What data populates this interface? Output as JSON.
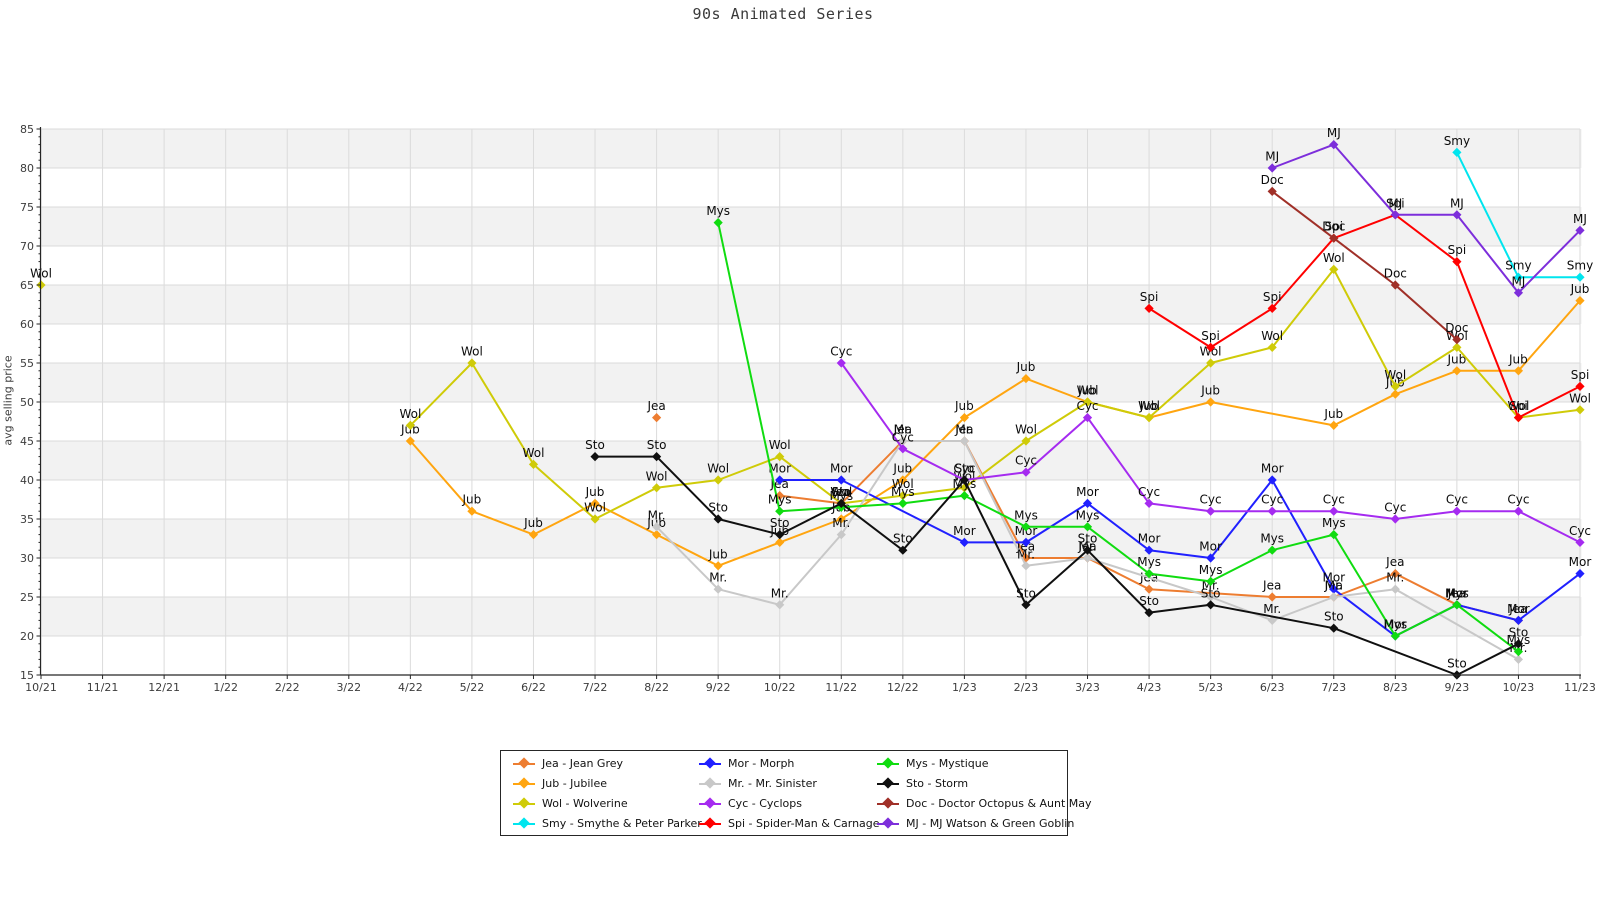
{
  "title": "90s Animated Series",
  "y_axis_label": "avg selling price",
  "legend_separator": " - ",
  "chart_data": {
    "type": "line",
    "title": "90s Animated Series",
    "xlabel": "",
    "ylabel": "avg selling price",
    "ylim": [
      15,
      85
    ],
    "ytick_step": 5,
    "grid": true,
    "band_rows": [
      [
        20,
        25
      ],
      [
        30,
        35
      ],
      [
        40,
        45
      ],
      [
        50,
        55
      ],
      [
        60,
        65
      ],
      [
        70,
        75
      ],
      [
        80,
        85
      ]
    ],
    "legend_position": "bottom-center",
    "marker": "diamond",
    "x": [
      "10/21",
      "11/21",
      "12/21",
      "1/22",
      "2/22",
      "3/22",
      "4/22",
      "5/22",
      "6/22",
      "7/22",
      "8/22",
      "9/22",
      "10/22",
      "11/22",
      "12/22",
      "1/23",
      "2/23",
      "3/23",
      "4/23",
      "5/23",
      "6/23",
      "7/23",
      "8/23",
      "9/23",
      "10/23",
      "11/23"
    ],
    "series": [
      {
        "key": "Jea",
        "name": "Jean Grey",
        "color": "#ED7D31",
        "breaks": [
          10
        ],
        "values": [
          null,
          null,
          null,
          null,
          null,
          null,
          null,
          null,
          null,
          null,
          48,
          null,
          38,
          37,
          45,
          45,
          30,
          30,
          26,
          null,
          25,
          25,
          28,
          24,
          22,
          null
        ]
      },
      {
        "key": "Jub",
        "name": "Jubilee",
        "color": "#FFA510",
        "breaks": [],
        "values": [
          null,
          null,
          null,
          null,
          null,
          null,
          45,
          36,
          33,
          37,
          33,
          29,
          32,
          35,
          40,
          48,
          53,
          50,
          48,
          50,
          null,
          47,
          51,
          54,
          54,
          63
        ]
      },
      {
        "key": "Wol",
        "name": "Wolverine",
        "color": "#CFCB08",
        "breaks": [
          0
        ],
        "values": [
          65,
          null,
          null,
          null,
          null,
          null,
          47,
          55,
          42,
          35,
          39,
          40,
          43,
          37,
          38,
          39,
          45,
          50,
          48,
          55,
          57,
          67,
          52,
          57,
          48,
          49
        ]
      },
      {
        "key": "Smy",
        "name": "Smythe & Peter Parker",
        "color": "#00E5EE",
        "breaks": [],
        "values": [
          null,
          null,
          null,
          null,
          null,
          null,
          null,
          null,
          null,
          null,
          null,
          null,
          null,
          null,
          null,
          null,
          null,
          null,
          null,
          null,
          null,
          null,
          null,
          82,
          66,
          66
        ]
      },
      {
        "key": "Mor",
        "name": "Morph",
        "color": "#2020FF",
        "breaks": [],
        "values": [
          null,
          null,
          null,
          null,
          null,
          null,
          null,
          null,
          null,
          null,
          null,
          null,
          40,
          40,
          null,
          32,
          32,
          37,
          31,
          30,
          40,
          26,
          20,
          24,
          22,
          28
        ]
      },
      {
        "key": "Mr.",
        "name": "Mr. Sinister",
        "color": "#C8C8C8",
        "breaks": [],
        "values": [
          null,
          null,
          null,
          null,
          null,
          null,
          null,
          null,
          null,
          null,
          34,
          26,
          24,
          33,
          45,
          45,
          29,
          30,
          null,
          25,
          22,
          25,
          26,
          null,
          17,
          null
        ]
      },
      {
        "key": "Cyc",
        "name": "Cyclops",
        "color": "#A52BF0",
        "breaks": [],
        "values": [
          null,
          null,
          null,
          null,
          null,
          null,
          null,
          null,
          null,
          null,
          null,
          null,
          null,
          55,
          44,
          40,
          41,
          48,
          37,
          36,
          36,
          36,
          35,
          36,
          36,
          32
        ]
      },
      {
        "key": "Spi",
        "name": "Spider-Man & Carnage",
        "color": "#FF0000",
        "breaks": [],
        "values": [
          null,
          null,
          null,
          null,
          null,
          null,
          null,
          null,
          null,
          null,
          null,
          null,
          null,
          null,
          null,
          null,
          null,
          null,
          62,
          57,
          62,
          71,
          74,
          68,
          48,
          52
        ]
      },
      {
        "key": "Mys",
        "name": "Mystique",
        "color": "#10DC10",
        "breaks": [],
        "values": [
          null,
          null,
          null,
          null,
          null,
          null,
          null,
          null,
          null,
          null,
          null,
          73,
          36,
          36.5,
          37,
          38,
          34,
          34,
          28,
          27,
          31,
          33,
          20,
          24,
          18,
          null
        ]
      },
      {
        "key": "Sto",
        "name": "Storm",
        "color": "#101010",
        "breaks": [],
        "values": [
          null,
          null,
          null,
          null,
          null,
          null,
          null,
          null,
          null,
          43,
          43,
          35,
          33,
          37,
          31,
          40,
          24,
          31,
          23,
          24,
          null,
          21,
          null,
          15,
          19,
          null
        ]
      },
      {
        "key": "Doc",
        "name": "Doctor Octopus & Aunt May",
        "color": "#A03028",
        "breaks": [],
        "values": [
          null,
          null,
          null,
          null,
          null,
          null,
          null,
          null,
          null,
          null,
          null,
          null,
          null,
          null,
          null,
          null,
          null,
          null,
          null,
          null,
          77,
          71,
          65,
          58,
          null,
          null
        ]
      },
      {
        "key": "MJ",
        "name": "MJ Watson & Green Goblin",
        "color": "#7D2EDB",
        "breaks": [],
        "values": [
          null,
          null,
          null,
          null,
          null,
          null,
          null,
          null,
          null,
          null,
          null,
          null,
          null,
          null,
          null,
          null,
          null,
          null,
          null,
          null,
          80,
          83,
          74,
          74,
          64,
          72
        ]
      }
    ]
  }
}
